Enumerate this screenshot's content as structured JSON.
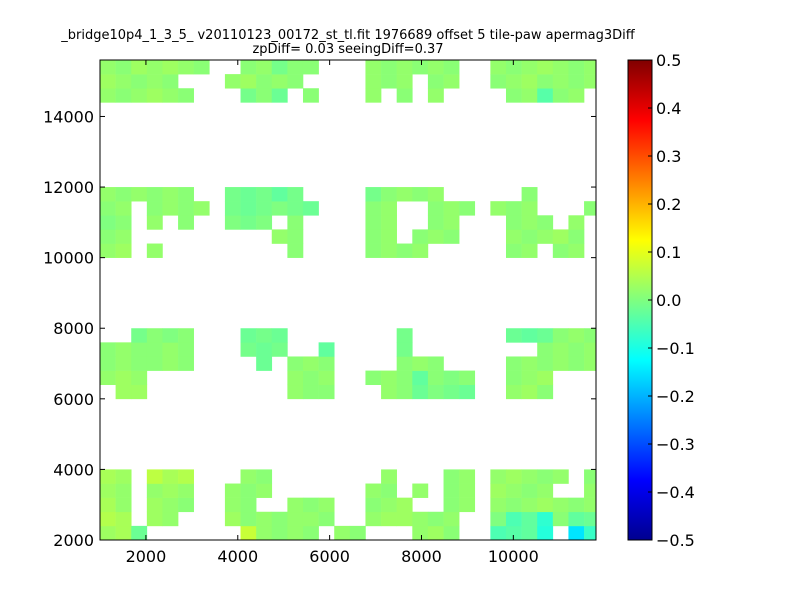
{
  "chart_data": {
    "type": "heatmap",
    "title": "_bridge10p4_1_3_5_ v20110123_00172_st_tl.fit 1976689 offset 5 tile-paw apermag3Diff",
    "subtitle": "zpDiff= 0.03 seeingDiff=0.37",
    "xlabel": "",
    "ylabel": "",
    "xlim": [
      1000,
      11800
    ],
    "ylim": [
      2000,
      15600
    ],
    "xticks": [
      "2000",
      "4000",
      "6000",
      "8000",
      "10000"
    ],
    "yticks": [
      "2000",
      "4000",
      "6000",
      "8000",
      "10000",
      "12000",
      "14000"
    ],
    "colorbar": {
      "range": [
        -0.5,
        0.5
      ],
      "ticks": [
        "0.5",
        "0.4",
        "0.3",
        "0.2",
        "0.1",
        "0.0",
        "−0.1",
        "−0.2",
        "−0.3",
        "−0.4",
        "−0.5"
      ],
      "colormap": "jet"
    },
    "x_bins": [
      1000,
      1340,
      1680,
      2020,
      2360,
      2700,
      3040,
      3380,
      3720,
      4060,
      4400,
      4740,
      5080,
      5420,
      5760,
      6100,
      6440,
      6780,
      7120,
      7460,
      7800,
      8140,
      8480,
      8820,
      9160,
      9500,
      9840,
      10180,
      10520,
      10860,
      11200,
      11540
    ],
    "y_bins": [
      2000,
      2400,
      2800,
      3200,
      3600,
      4000,
      4400,
      4800,
      5200,
      5600,
      6000,
      6400,
      6800,
      7200,
      7600,
      8000,
      8400,
      8800,
      9200,
      9600,
      10000,
      10400,
      10800,
      11200,
      11600,
      12000,
      12400,
      12800,
      13200,
      13600,
      14000,
      14400,
      14800,
      15200
    ],
    "cells": [
      [
        0,
        0,
        0.03
      ],
      [
        1,
        0,
        0.04
      ],
      [
        2,
        0,
        -0.02
      ],
      [
        9,
        0,
        0.07
      ],
      [
        10,
        0,
        0.02
      ],
      [
        11,
        0,
        0.01
      ],
      [
        12,
        0,
        0.02
      ],
      [
        13,
        0,
        0.01
      ],
      [
        15,
        0,
        0.02
      ],
      [
        16,
        0,
        0.01
      ],
      [
        20,
        0,
        0.02
      ],
      [
        21,
        0,
        0.03
      ],
      [
        22,
        0,
        0.01
      ],
      [
        25,
        0,
        -0.05
      ],
      [
        26,
        0,
        -0.04
      ],
      [
        27,
        0,
        -0.03
      ],
      [
        28,
        0,
        -0.09
      ],
      [
        30,
        0,
        -0.15
      ],
      [
        31,
        0,
        -0.07
      ],
      [
        0,
        1,
        0.05
      ],
      [
        1,
        1,
        0.04
      ],
      [
        3,
        1,
        0.03
      ],
      [
        4,
        1,
        0.02
      ],
      [
        8,
        1,
        0.03
      ],
      [
        9,
        1,
        0.01
      ],
      [
        10,
        1,
        0.02
      ],
      [
        11,
        1,
        0.01
      ],
      [
        12,
        1,
        0.02
      ],
      [
        13,
        1,
        0.02
      ],
      [
        14,
        1,
        0.01
      ],
      [
        17,
        1,
        0.02
      ],
      [
        18,
        1,
        0.03
      ],
      [
        19,
        1,
        0.03
      ],
      [
        20,
        1,
        0.02
      ],
      [
        21,
        1,
        0.01
      ],
      [
        22,
        1,
        0.02
      ],
      [
        25,
        1,
        0.0
      ],
      [
        26,
        1,
        -0.05
      ],
      [
        27,
        1,
        -0.03
      ],
      [
        28,
        1,
        -0.08
      ],
      [
        29,
        1,
        0.01
      ],
      [
        30,
        1,
        -0.03
      ],
      [
        31,
        1,
        -0.02
      ],
      [
        0,
        2,
        0.04
      ],
      [
        1,
        2,
        0.02
      ],
      [
        3,
        2,
        0.03
      ],
      [
        4,
        2,
        0.02
      ],
      [
        5,
        2,
        0.01
      ],
      [
        8,
        2,
        0.02
      ],
      [
        9,
        2,
        0.01
      ],
      [
        12,
        2,
        0.02
      ],
      [
        13,
        2,
        0.01
      ],
      [
        14,
        2,
        0.02
      ],
      [
        17,
        2,
        0.01
      ],
      [
        18,
        2,
        0.02
      ],
      [
        19,
        2,
        0.03
      ],
      [
        22,
        2,
        0.01
      ],
      [
        23,
        2,
        0.02
      ],
      [
        25,
        2,
        0.02
      ],
      [
        26,
        2,
        0.01
      ],
      [
        27,
        2,
        0.02
      ],
      [
        28,
        2,
        0.03
      ],
      [
        29,
        2,
        0.02
      ],
      [
        30,
        2,
        0.01
      ],
      [
        31,
        2,
        0.02
      ],
      [
        0,
        3,
        0.03
      ],
      [
        1,
        3,
        0.02
      ],
      [
        3,
        3,
        0.02
      ],
      [
        4,
        3,
        0.03
      ],
      [
        5,
        3,
        0.02
      ],
      [
        8,
        3,
        0.02
      ],
      [
        9,
        3,
        0.01
      ],
      [
        10,
        3,
        0.02
      ],
      [
        17,
        3,
        0.02
      ],
      [
        18,
        3,
        0.01
      ],
      [
        20,
        3,
        0.02
      ],
      [
        22,
        3,
        0.01
      ],
      [
        23,
        3,
        0.02
      ],
      [
        25,
        3,
        0.03
      ],
      [
        26,
        3,
        0.02
      ],
      [
        27,
        3,
        0.01
      ],
      [
        28,
        3,
        0.02
      ],
      [
        31,
        3,
        0.02
      ],
      [
        0,
        4,
        0.04
      ],
      [
        1,
        4,
        0.03
      ],
      [
        3,
        4,
        0.06
      ],
      [
        4,
        4,
        0.04
      ],
      [
        5,
        4,
        0.05
      ],
      [
        9,
        4,
        0.02
      ],
      [
        10,
        4,
        0.01
      ],
      [
        18,
        4,
        0.02
      ],
      [
        22,
        4,
        0.01
      ],
      [
        23,
        4,
        0.02
      ],
      [
        25,
        4,
        0.02
      ],
      [
        26,
        4,
        0.03
      ],
      [
        27,
        4,
        0.02
      ],
      [
        28,
        4,
        0.01
      ],
      [
        29,
        4,
        0.02
      ],
      [
        31,
        4,
        0.01
      ],
      [
        1,
        10,
        0.03
      ],
      [
        2,
        10,
        0.03
      ],
      [
        12,
        10,
        0.02
      ],
      [
        13,
        10,
        0.01
      ],
      [
        14,
        10,
        0.01
      ],
      [
        18,
        10,
        0.02
      ],
      [
        19,
        10,
        0.01
      ],
      [
        20,
        10,
        -0.02
      ],
      [
        21,
        10,
        0.0
      ],
      [
        22,
        10,
        -0.01
      ],
      [
        23,
        10,
        -0.02
      ],
      [
        26,
        10,
        0.02
      ],
      [
        27,
        10,
        0.03
      ],
      [
        28,
        10,
        0.01
      ],
      [
        0,
        11,
        0.02
      ],
      [
        1,
        11,
        0.03
      ],
      [
        2,
        11,
        0.02
      ],
      [
        12,
        11,
        0.02
      ],
      [
        13,
        11,
        0.01
      ],
      [
        14,
        11,
        0.02
      ],
      [
        17,
        11,
        0.01
      ],
      [
        18,
        11,
        0.02
      ],
      [
        19,
        11,
        0.01
      ],
      [
        20,
        11,
        -0.03
      ],
      [
        21,
        11,
        0.01
      ],
      [
        22,
        11,
        0.0
      ],
      [
        23,
        11,
        0.01
      ],
      [
        26,
        11,
        0.01
      ],
      [
        27,
        11,
        0.02
      ],
      [
        28,
        11,
        0.03
      ],
      [
        0,
        12,
        0.01
      ],
      [
        1,
        12,
        0.02
      ],
      [
        2,
        12,
        0.01
      ],
      [
        3,
        12,
        0.01
      ],
      [
        4,
        12,
        0.02
      ],
      [
        5,
        12,
        0.01
      ],
      [
        10,
        12,
        -0.02
      ],
      [
        12,
        12,
        0.01
      ],
      [
        13,
        12,
        0.02
      ],
      [
        14,
        12,
        0.01
      ],
      [
        19,
        12,
        0.01
      ],
      [
        20,
        12,
        0.02
      ],
      [
        21,
        12,
        0.01
      ],
      [
        26,
        12,
        0.01
      ],
      [
        27,
        12,
        0.02
      ],
      [
        28,
        12,
        0.01
      ],
      [
        29,
        12,
        0.02
      ],
      [
        30,
        12,
        0.01
      ],
      [
        31,
        12,
        0.02
      ],
      [
        0,
        13,
        0.01
      ],
      [
        1,
        13,
        0.02
      ],
      [
        2,
        13,
        0.01
      ],
      [
        3,
        13,
        0.01
      ],
      [
        4,
        13,
        0.02
      ],
      [
        5,
        13,
        0.01
      ],
      [
        9,
        13,
        -0.01
      ],
      [
        10,
        13,
        -0.02
      ],
      [
        11,
        13,
        -0.01
      ],
      [
        14,
        13,
        -0.03
      ],
      [
        19,
        13,
        -0.01
      ],
      [
        28,
        13,
        0.01
      ],
      [
        29,
        13,
        0.02
      ],
      [
        30,
        13,
        0.01
      ],
      [
        31,
        13,
        0.02
      ],
      [
        2,
        14,
        -0.01
      ],
      [
        3,
        14,
        0.01
      ],
      [
        4,
        14,
        0.0
      ],
      [
        5,
        14,
        0.01
      ],
      [
        9,
        14,
        -0.02
      ],
      [
        10,
        14,
        -0.01
      ],
      [
        11,
        14,
        -0.02
      ],
      [
        19,
        14,
        -0.01
      ],
      [
        26,
        14,
        -0.02
      ],
      [
        27,
        14,
        -0.03
      ],
      [
        28,
        14,
        -0.02
      ],
      [
        29,
        14,
        0.01
      ],
      [
        30,
        14,
        0.02
      ],
      [
        31,
        14,
        0.01
      ],
      [
        0,
        20,
        0.02
      ],
      [
        1,
        20,
        0.03
      ],
      [
        3,
        20,
        0.02
      ],
      [
        12,
        20,
        0.01
      ],
      [
        17,
        20,
        0.01
      ],
      [
        18,
        20,
        0.02
      ],
      [
        19,
        20,
        0.01
      ],
      [
        20,
        20,
        0.02
      ],
      [
        26,
        20,
        0.01
      ],
      [
        27,
        20,
        0.02
      ],
      [
        29,
        20,
        0.01
      ],
      [
        30,
        20,
        0.02
      ],
      [
        0,
        21,
        0.01
      ],
      [
        1,
        21,
        0.02
      ],
      [
        11,
        21,
        0.02
      ],
      [
        12,
        21,
        0.01
      ],
      [
        17,
        21,
        0.01
      ],
      [
        18,
        21,
        0.02
      ],
      [
        20,
        21,
        0.01
      ],
      [
        21,
        21,
        0.02
      ],
      [
        22,
        21,
        0.01
      ],
      [
        26,
        21,
        0.02
      ],
      [
        27,
        21,
        0.01
      ],
      [
        28,
        21,
        0.02
      ],
      [
        29,
        21,
        0.03
      ],
      [
        30,
        21,
        0.01
      ],
      [
        0,
        22,
        0.0
      ],
      [
        1,
        22,
        0.01
      ],
      [
        3,
        22,
        0.02
      ],
      [
        5,
        22,
        0.01
      ],
      [
        8,
        22,
        0.0
      ],
      [
        9,
        22,
        -0.01
      ],
      [
        10,
        22,
        0.0
      ],
      [
        12,
        22,
        0.01
      ],
      [
        17,
        22,
        0.01
      ],
      [
        18,
        22,
        0.02
      ],
      [
        21,
        22,
        0.01
      ],
      [
        22,
        22,
        0.02
      ],
      [
        26,
        22,
        0.01
      ],
      [
        27,
        22,
        0.02
      ],
      [
        28,
        22,
        0.01
      ],
      [
        30,
        22,
        0.02
      ],
      [
        0,
        23,
        0.01
      ],
      [
        1,
        23,
        0.02
      ],
      [
        3,
        23,
        0.01
      ],
      [
        4,
        23,
        0.02
      ],
      [
        5,
        23,
        0.01
      ],
      [
        6,
        23,
        0.02
      ],
      [
        8,
        23,
        -0.01
      ],
      [
        9,
        23,
        -0.02
      ],
      [
        10,
        23,
        -0.01
      ],
      [
        11,
        23,
        0.0
      ],
      [
        12,
        23,
        -0.01
      ],
      [
        13,
        23,
        -0.02
      ],
      [
        17,
        23,
        0.01
      ],
      [
        18,
        23,
        0.02
      ],
      [
        21,
        23,
        0.01
      ],
      [
        22,
        23,
        0.02
      ],
      [
        23,
        23,
        0.01
      ],
      [
        25,
        23,
        0.02
      ],
      [
        26,
        23,
        0.01
      ],
      [
        27,
        23,
        0.02
      ],
      [
        31,
        23,
        0.01
      ],
      [
        0,
        24,
        0.02
      ],
      [
        1,
        24,
        0.01
      ],
      [
        2,
        24,
        0.02
      ],
      [
        3,
        24,
        0.01
      ],
      [
        4,
        24,
        0.02
      ],
      [
        5,
        24,
        0.01
      ],
      [
        8,
        24,
        -0.01
      ],
      [
        9,
        24,
        -0.02
      ],
      [
        10,
        24,
        -0.01
      ],
      [
        11,
        24,
        -0.03
      ],
      [
        12,
        24,
        -0.01
      ],
      [
        17,
        24,
        -0.01
      ],
      [
        18,
        24,
        0.01
      ],
      [
        19,
        24,
        0.02
      ],
      [
        20,
        24,
        0.01
      ],
      [
        21,
        24,
        0.02
      ],
      [
        27,
        24,
        0.01
      ],
      [
        0,
        31,
        0.02
      ],
      [
        1,
        31,
        0.01
      ],
      [
        2,
        31,
        0.02
      ],
      [
        3,
        31,
        0.03
      ],
      [
        4,
        31,
        0.02
      ],
      [
        5,
        31,
        0.01
      ],
      [
        9,
        31,
        -0.01
      ],
      [
        10,
        31,
        0.01
      ],
      [
        11,
        31,
        -0.02
      ],
      [
        13,
        31,
        0.01
      ],
      [
        17,
        31,
        0.02
      ],
      [
        19,
        31,
        0.01
      ],
      [
        21,
        31,
        0.02
      ],
      [
        26,
        31,
        0.01
      ],
      [
        27,
        31,
        0.02
      ],
      [
        28,
        31,
        -0.04
      ],
      [
        29,
        31,
        0.01
      ],
      [
        30,
        31,
        0.02
      ],
      [
        0,
        32,
        0.03
      ],
      [
        1,
        32,
        0.02
      ],
      [
        2,
        32,
        0.01
      ],
      [
        3,
        32,
        0.02
      ],
      [
        4,
        32,
        0.01
      ],
      [
        8,
        32,
        0.02
      ],
      [
        9,
        32,
        0.03
      ],
      [
        10,
        32,
        0.01
      ],
      [
        11,
        32,
        0.02
      ],
      [
        12,
        32,
        0.01
      ],
      [
        17,
        32,
        0.02
      ],
      [
        18,
        32,
        0.01
      ],
      [
        19,
        32,
        0.02
      ],
      [
        21,
        32,
        0.01
      ],
      [
        22,
        32,
        0.02
      ],
      [
        25,
        32,
        0.01
      ],
      [
        26,
        32,
        0.02
      ],
      [
        27,
        32,
        0.03
      ],
      [
        28,
        32,
        0.01
      ],
      [
        29,
        32,
        0.02
      ],
      [
        30,
        32,
        0.01
      ],
      [
        31,
        32,
        0.02
      ],
      [
        0,
        33,
        0.02
      ],
      [
        1,
        33,
        0.01
      ],
      [
        2,
        33,
        0.03
      ],
      [
        3,
        33,
        0.02
      ],
      [
        4,
        33,
        0.03
      ],
      [
        5,
        33,
        0.02
      ],
      [
        6,
        33,
        0.01
      ],
      [
        9,
        33,
        0.01
      ],
      [
        10,
        33,
        0.02
      ],
      [
        11,
        33,
        -0.01
      ],
      [
        12,
        33,
        0.01
      ],
      [
        13,
        33,
        0.01
      ],
      [
        17,
        33,
        0.02
      ],
      [
        18,
        33,
        0.01
      ],
      [
        19,
        33,
        0.02
      ],
      [
        20,
        33,
        0.01
      ],
      [
        21,
        33,
        0.02
      ],
      [
        22,
        33,
        0.01
      ],
      [
        25,
        33,
        0.02
      ],
      [
        26,
        33,
        0.01
      ],
      [
        27,
        33,
        0.02
      ],
      [
        28,
        33,
        0.03
      ],
      [
        29,
        33,
        0.02
      ],
      [
        30,
        33,
        0.01
      ],
      [
        31,
        33,
        0.02
      ]
    ]
  }
}
